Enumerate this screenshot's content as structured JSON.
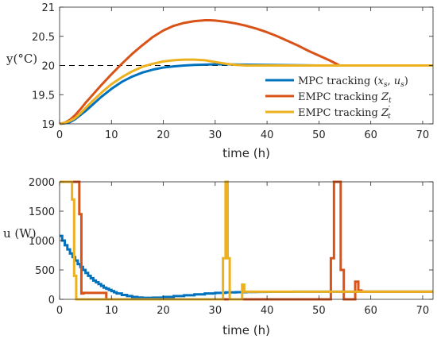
{
  "colors": {
    "mpc": "#0072BD",
    "empc_z": "#D95319",
    "empc_zp": "#EDB120",
    "ref": "#000000"
  },
  "chart_data": [
    {
      "type": "line",
      "xlabel": "time (h)",
      "ylabel": "y(°C)",
      "xlim": [
        0,
        72
      ],
      "ylim": [
        19,
        21
      ],
      "xticks": [
        0,
        10,
        20,
        30,
        40,
        50,
        60,
        70
      ],
      "yticks": [
        19,
        19.5,
        20,
        20.5,
        21
      ],
      "ytick_labels": [
        "19",
        "19.5",
        "20",
        "20.5",
        "21"
      ],
      "grid": false,
      "legend": "bottom-right",
      "reference_line": {
        "y": 20,
        "style": "dashed"
      },
      "series": [
        {
          "name": "MPC tracking (x_s, u_s)",
          "legend_parts": [
            "MPC tracking (",
            "x",
            "s",
            ", ",
            "u",
            "s",
            ")"
          ],
          "x": [
            0,
            1,
            2,
            3,
            4,
            5,
            6,
            8,
            10,
            12,
            14,
            16,
            18,
            20,
            22,
            24,
            26,
            28,
            30,
            32,
            35,
            40,
            45,
            50,
            55,
            60,
            65,
            72
          ],
          "y": [
            19,
            19.01,
            19.03,
            19.08,
            19.15,
            19.22,
            19.3,
            19.46,
            19.6,
            19.72,
            19.81,
            19.88,
            19.93,
            19.965,
            19.985,
            20.0,
            20.01,
            20.015,
            20.02,
            20.02,
            20.015,
            20.01,
            20.005,
            20.0,
            20.0,
            20.0,
            20.0,
            20.0
          ]
        },
        {
          "name": "EMPC tracking Z_t",
          "legend_parts": [
            "EMPC tracking ",
            "Z",
            "t"
          ],
          "x": [
            0,
            1,
            2,
            3,
            4,
            5,
            6,
            8,
            10,
            12,
            14,
            16,
            18,
            20,
            22,
            24,
            26,
            28,
            29,
            30,
            32,
            34,
            36,
            38,
            40,
            42,
            44,
            46,
            48,
            50,
            52,
            54,
            55,
            60,
            65,
            72
          ],
          "y": [
            19,
            19.02,
            19.07,
            19.15,
            19.25,
            19.36,
            19.46,
            19.66,
            19.85,
            20.03,
            20.2,
            20.35,
            20.49,
            20.6,
            20.68,
            20.73,
            20.76,
            20.775,
            20.775,
            20.77,
            20.75,
            20.72,
            20.68,
            20.63,
            20.57,
            20.5,
            20.42,
            20.34,
            20.25,
            20.17,
            20.09,
            20.0,
            20.0,
            20.0,
            20.0,
            20.0
          ]
        },
        {
          "name": "EMPC tracking Z'_t",
          "legend_parts": [
            "EMPC tracking ",
            "Z",
            "′",
            "t"
          ],
          "x": [
            0,
            1,
            2,
            3,
            4,
            5,
            6,
            8,
            10,
            12,
            14,
            16,
            18,
            20,
            22,
            24,
            26,
            28,
            30,
            32,
            34,
            36,
            40,
            50,
            60,
            72
          ],
          "y": [
            19,
            19.02,
            19.05,
            19.1,
            19.18,
            19.27,
            19.36,
            19.53,
            19.68,
            19.8,
            19.9,
            19.98,
            20.03,
            20.07,
            20.09,
            20.1,
            20.1,
            20.09,
            20.06,
            20.03,
            20.01,
            20.0,
            20.0,
            20.0,
            20.0,
            20.0
          ]
        }
      ]
    },
    {
      "type": "line",
      "xlabel": "time (h)",
      "ylabel": "u (W)",
      "xlim": [
        0,
        72
      ],
      "ylim": [
        0,
        2000
      ],
      "xticks": [
        0,
        10,
        20,
        30,
        40,
        50,
        60,
        70
      ],
      "yticks": [
        0,
        500,
        1000,
        1500,
        2000
      ],
      "grid": false,
      "series": [
        {
          "name": "MPC tracking (x_s, u_s)",
          "step": true,
          "x": [
            0,
            0.5,
            1,
            1.5,
            2,
            2.5,
            3,
            3.5,
            4,
            4.5,
            5,
            5.5,
            6,
            6.5,
            7,
            7.5,
            8,
            8.5,
            9,
            9.5,
            10,
            10.5,
            11,
            12,
            13,
            14,
            15,
            16,
            17,
            18,
            20,
            22,
            24,
            26,
            28,
            30,
            32,
            34,
            36,
            38,
            40,
            45,
            50,
            60,
            72
          ],
          "y": [
            1080,
            1000,
            920,
            850,
            780,
            720,
            660,
            600,
            550,
            500,
            450,
            400,
            360,
            320,
            290,
            260,
            230,
            200,
            180,
            160,
            140,
            120,
            100,
            75,
            55,
            40,
            30,
            25,
            25,
            28,
            40,
            55,
            70,
            85,
            100,
            110,
            118,
            122,
            125,
            127,
            128,
            130,
            130,
            130,
            130
          ]
        },
        {
          "name": "EMPC tracking Z_t",
          "step": true,
          "x": [
            0,
            3.8,
            3.8,
            4.2,
            4.2,
            4.6,
            4.6,
            9,
            9,
            52.3,
            52.3,
            52.9,
            52.9,
            54.2,
            54.2,
            54.8,
            54.8,
            57,
            57,
            57.6,
            57.6,
            58.2,
            58.2,
            72
          ],
          "y": [
            2000,
            2000,
            1450,
            1450,
            100,
            100,
            110,
            110,
            0,
            0,
            700,
            700,
            2000,
            2000,
            500,
            500,
            0,
            0,
            300,
            300,
            150,
            150,
            130,
            130
          ]
        },
        {
          "name": "EMPC tracking Z'_t",
          "step": true,
          "x": [
            0,
            2.4,
            2.4,
            2.8,
            2.8,
            3.2,
            3.2,
            31.5,
            31.5,
            32,
            32,
            32.4,
            32.4,
            32.8,
            32.8,
            35.2,
            35.2,
            35.6,
            35.6,
            72
          ],
          "y": [
            2000,
            2000,
            1700,
            1700,
            400,
            400,
            0,
            0,
            700,
            700,
            2000,
            2000,
            700,
            700,
            0,
            0,
            250,
            250,
            130,
            130
          ]
        }
      ]
    }
  ]
}
